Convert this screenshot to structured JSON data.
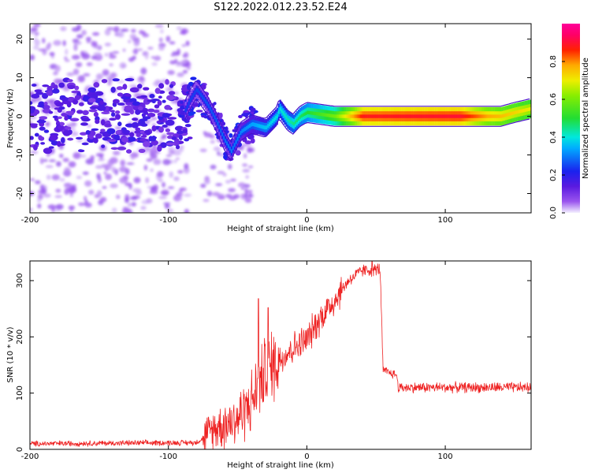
{
  "figure": {
    "title": "S122.2022.012.23.52.E24"
  },
  "chart_data": [
    {
      "type": "heatmap",
      "xlabel": "Height of straight line (km)",
      "ylabel": "Frequency (Hz)",
      "xlim": [
        -200,
        162
      ],
      "ylim": [
        -25,
        24
      ],
      "xticks": [
        -200,
        -100,
        0,
        100
      ],
      "yticks": [
        -20,
        -10,
        0,
        10,
        20
      ],
      "colorbar": {
        "label": "Normalized spectral amplitude",
        "range": [
          0,
          1
        ],
        "ticks": [
          0.0,
          0.2,
          0.4,
          0.6,
          0.8
        ],
        "colormap": "rainbow (violet-blue-cyan-green-yellow-red-magenta)"
      },
      "ridge_center_hz": [
        {
          "x": -200,
          "y": 0
        },
        {
          "x": -90,
          "y": 0
        },
        {
          "x": -85,
          "y": 4
        },
        {
          "x": -80,
          "y": 7
        },
        {
          "x": -72,
          "y": 3
        },
        {
          "x": -66,
          "y": -1
        },
        {
          "x": -60,
          "y": -6
        },
        {
          "x": -55,
          "y": -9
        },
        {
          "x": -48,
          "y": -4
        },
        {
          "x": -40,
          "y": -2
        },
        {
          "x": -30,
          "y": -3
        },
        {
          "x": -22,
          "y": 0
        },
        {
          "x": -20,
          "y": 2
        },
        {
          "x": -14,
          "y": -1
        },
        {
          "x": -10,
          "y": -2
        },
        {
          "x": -5,
          "y": 0
        },
        {
          "x": 0,
          "y": 1
        },
        {
          "x": 20,
          "y": 0
        },
        {
          "x": 140,
          "y": 0
        },
        {
          "x": 150,
          "y": 1
        },
        {
          "x": 162,
          "y": 2
        }
      ],
      "ridge_amplitude": [
        {
          "x": -200,
          "a": 0.12
        },
        {
          "x": -80,
          "a": 0.25
        },
        {
          "x": -50,
          "a": 0.3
        },
        {
          "x": -20,
          "a": 0.4
        },
        {
          "x": 0,
          "a": 0.5
        },
        {
          "x": 20,
          "a": 0.6
        },
        {
          "x": 40,
          "a": 0.88
        },
        {
          "x": 110,
          "a": 0.9
        },
        {
          "x": 130,
          "a": 0.78
        },
        {
          "x": 162,
          "a": 0.7
        }
      ]
    },
    {
      "type": "line",
      "xlabel": "Height of straight line (km)",
      "ylabel": "SNR (10 * v/v)",
      "xlim": [
        -200,
        162
      ],
      "ylim": [
        0,
        335
      ],
      "xticks": [
        -200,
        -100,
        0,
        100
      ],
      "yticks": [
        0,
        100,
        200,
        300
      ],
      "color": "#ee2222",
      "series": [
        {
          "envelope_mean": [
            {
              "x": -200,
              "y": 10
            },
            {
              "x": -80,
              "y": 12
            },
            {
              "x": -75,
              "y": 20
            },
            {
              "x": -65,
              "y": 40
            },
            {
              "x": -50,
              "y": 55
            },
            {
              "x": -40,
              "y": 85
            },
            {
              "x": -30,
              "y": 140
            },
            {
              "x": -20,
              "y": 160
            },
            {
              "x": -10,
              "y": 180
            },
            {
              "x": 0,
              "y": 195
            },
            {
              "x": 10,
              "y": 235
            },
            {
              "x": 20,
              "y": 265
            },
            {
              "x": 30,
              "y": 300
            },
            {
              "x": 40,
              "y": 318
            },
            {
              "x": 53,
              "y": 320
            },
            {
              "x": 55,
              "y": 140
            },
            {
              "x": 65,
              "y": 132
            },
            {
              "x": 66,
              "y": 110
            },
            {
              "x": 100,
              "y": 110
            },
            {
              "x": 162,
              "y": 110
            }
          ],
          "spikes": [
            {
              "x": -35,
              "y": 268
            },
            {
              "x": -28,
              "y": 252
            },
            {
              "x": 47,
              "y": 335
            }
          ]
        }
      ]
    }
  ]
}
